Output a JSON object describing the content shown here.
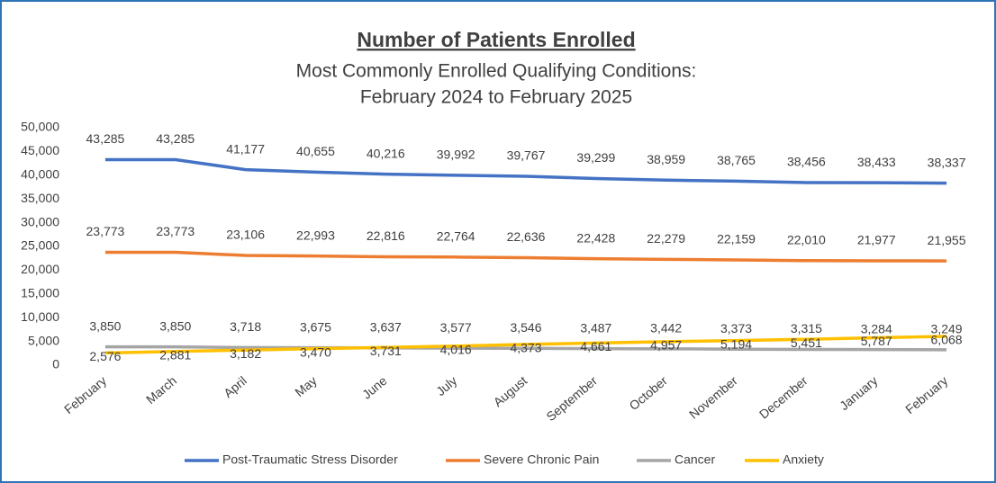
{
  "chart_data": {
    "type": "line",
    "title": "Number of Patients Enrolled",
    "subtitle": [
      "Most Commonly Enrolled Qualifying Conditions:",
      "February 2024 to February 2025"
    ],
    "categories": [
      "February",
      "March",
      "April",
      "May",
      "June",
      "July",
      "August",
      "September",
      "October",
      "November",
      "December",
      "January",
      "February"
    ],
    "series": [
      {
        "name": "Post-Traumatic Stress Disorder",
        "color": "#4472c4",
        "values": [
          43285,
          43285,
          41177,
          40655,
          40216,
          39992,
          39767,
          39299,
          38959,
          38765,
          38456,
          38433,
          38337
        ],
        "value_labels": [
          "43,285",
          "43,285",
          "41,177",
          "40,655",
          "40,216",
          "39,992",
          "39,767",
          "39,299",
          "38,959",
          "38,765",
          "38,456",
          "38,433",
          "38,337"
        ]
      },
      {
        "name": "Severe Chronic Pain",
        "color": "#ed7d31",
        "values": [
          23773,
          23773,
          23106,
          22993,
          22816,
          22764,
          22636,
          22428,
          22279,
          22159,
          22010,
          21977,
          21955
        ],
        "value_labels": [
          "23,773",
          "23,773",
          "23,106",
          "22,993",
          "22,816",
          "22,764",
          "22,636",
          "22,428",
          "22,279",
          "22,159",
          "22,010",
          "21,977",
          "21,955"
        ]
      },
      {
        "name": "Cancer",
        "color": "#a5a5a5",
        "values": [
          3850,
          3850,
          3718,
          3675,
          3637,
          3577,
          3546,
          3487,
          3442,
          3373,
          3315,
          3284,
          3249
        ],
        "value_labels": [
          "3,850",
          "3,850",
          "3,718",
          "3,675",
          "3,637",
          "3,577",
          "3,546",
          "3,487",
          "3,442",
          "3,373",
          "3,315",
          "3,284",
          "3,249"
        ]
      },
      {
        "name": "Anxiety",
        "color": "#ffc000",
        "values": [
          2576,
          2881,
          3182,
          3470,
          3731,
          4016,
          4373,
          4661,
          4957,
          5194,
          5451,
          5787,
          6068
        ],
        "value_labels": [
          "2,576",
          "2,881",
          "3,182",
          "3,470",
          "3,731",
          "4,016",
          "4,373",
          "4,661",
          "4,957",
          "5,194",
          "5,451",
          "5,787",
          "6,068"
        ]
      }
    ],
    "ylim": [
      0,
      50000
    ],
    "yticks": [
      0,
      {
        "value": 5000,
        "label": "5,000"
      },
      {
        "value": 10000,
        "label": "10,000"
      },
      {
        "value": 15000,
        "label": "15,000"
      },
      {
        "value": 20000,
        "label": "20,000"
      },
      {
        "value": 25000,
        "label": "25,000"
      },
      {
        "value": 30000,
        "label": "30,000"
      },
      {
        "value": 35000,
        "label": "35,000"
      },
      {
        "value": 40000,
        "label": "40,000"
      },
      {
        "value": 45000,
        "label": "45,000"
      },
      {
        "value": 50000,
        "label": "50,000"
      }
    ],
    "grid": false,
    "legend": "bottom"
  }
}
